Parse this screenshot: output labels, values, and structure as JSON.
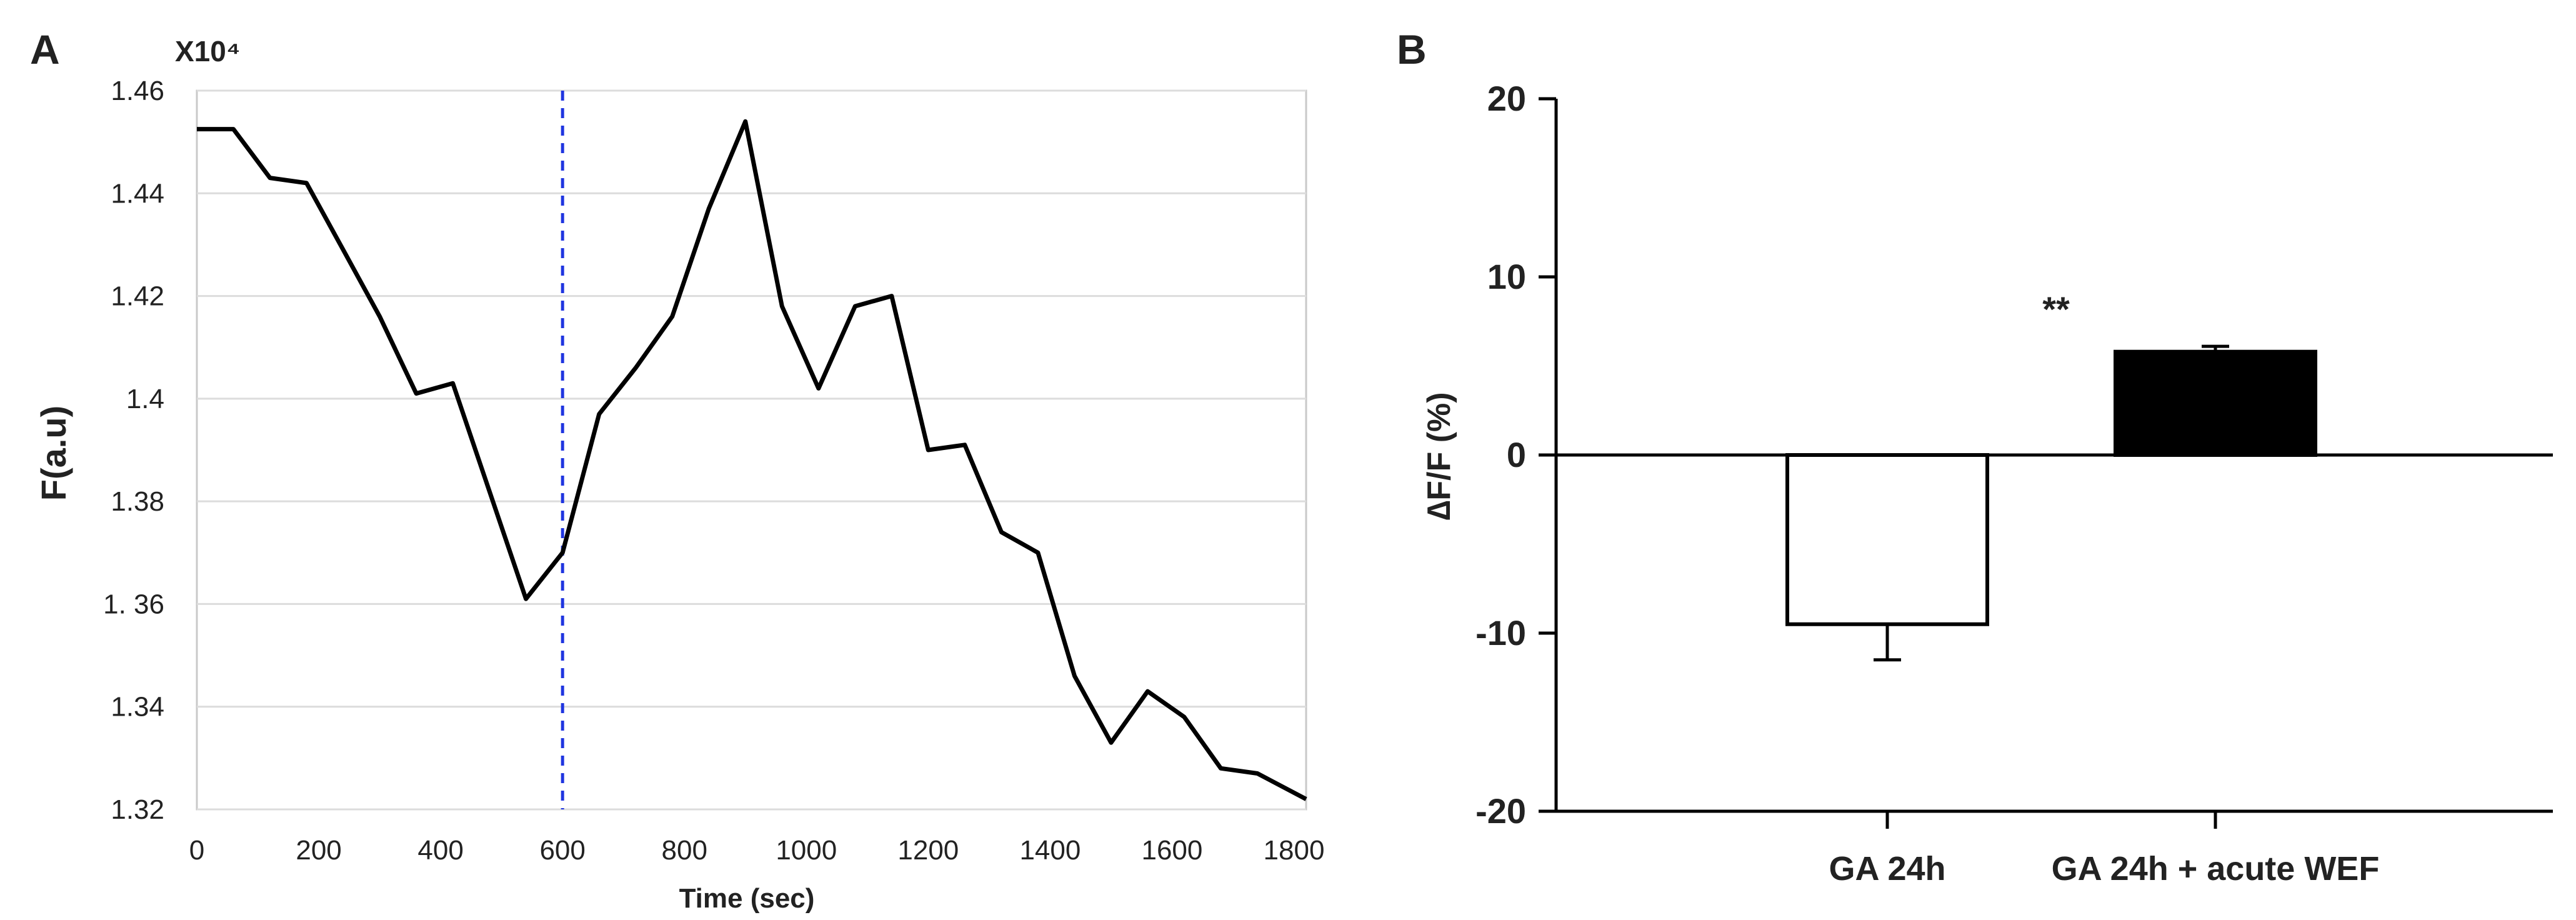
{
  "panels": {
    "a_label": "A",
    "b_label": "B"
  },
  "chart_data": [
    {
      "type": "line",
      "multiplier_label": "X10⁴",
      "xlabel": "Time (sec)",
      "ylabel": "F(a.u)",
      "xlim": [
        0,
        1820
      ],
      "ylim": [
        1.32,
        1.46
      ],
      "x_ticks": [
        0,
        200,
        400,
        600,
        800,
        1000,
        1200,
        1400,
        1600,
        1800
      ],
      "y_ticks": [
        1.32,
        1.34,
        1.36,
        1.38,
        1.4,
        1.42,
        1.44,
        1.46
      ],
      "y_tick_labels": [
        "1.32",
        "1.34",
        "1. 36",
        "1.38",
        "1.4",
        "1.42",
        "1.44",
        "1.46"
      ],
      "grid": true,
      "marker_line_x": 600,
      "marker_line_color": "#1f35e0",
      "line_color": "#000000",
      "series": [
        {
          "x": [
            0,
            60,
            120,
            180,
            240,
            300,
            360,
            420,
            480,
            540,
            600,
            660,
            720,
            780,
            840,
            900,
            960,
            1020,
            1080,
            1140,
            1200,
            1260,
            1320,
            1380,
            1440,
            1500,
            1560,
            1620,
            1680,
            1740,
            1820
          ],
          "values": [
            1.4525,
            1.4525,
            1.443,
            1.442,
            1.429,
            1.416,
            1.401,
            1.403,
            1.382,
            1.361,
            1.37,
            1.397,
            1.406,
            1.416,
            1.437,
            1.454,
            1.418,
            1.402,
            1.418,
            1.42,
            1.39,
            1.391,
            1.374,
            1.37,
            1.346,
            1.333,
            1.343,
            1.338,
            1.328,
            1.327,
            1.322
          ]
        }
      ]
    },
    {
      "type": "bar",
      "categories": [
        "GA 24h",
        "GA 24h + acute WEF"
      ],
      "values": [
        -9.5,
        5.8
      ],
      "errors": [
        2.0,
        0.3
      ],
      "bar_colors": [
        "#ffffff",
        "#000000"
      ],
      "ylabel": "∆F/F (%)",
      "ylim": [
        -20,
        20
      ],
      "y_ticks": [
        -20,
        -10,
        0,
        10,
        20
      ],
      "significance_label": "**"
    }
  ]
}
